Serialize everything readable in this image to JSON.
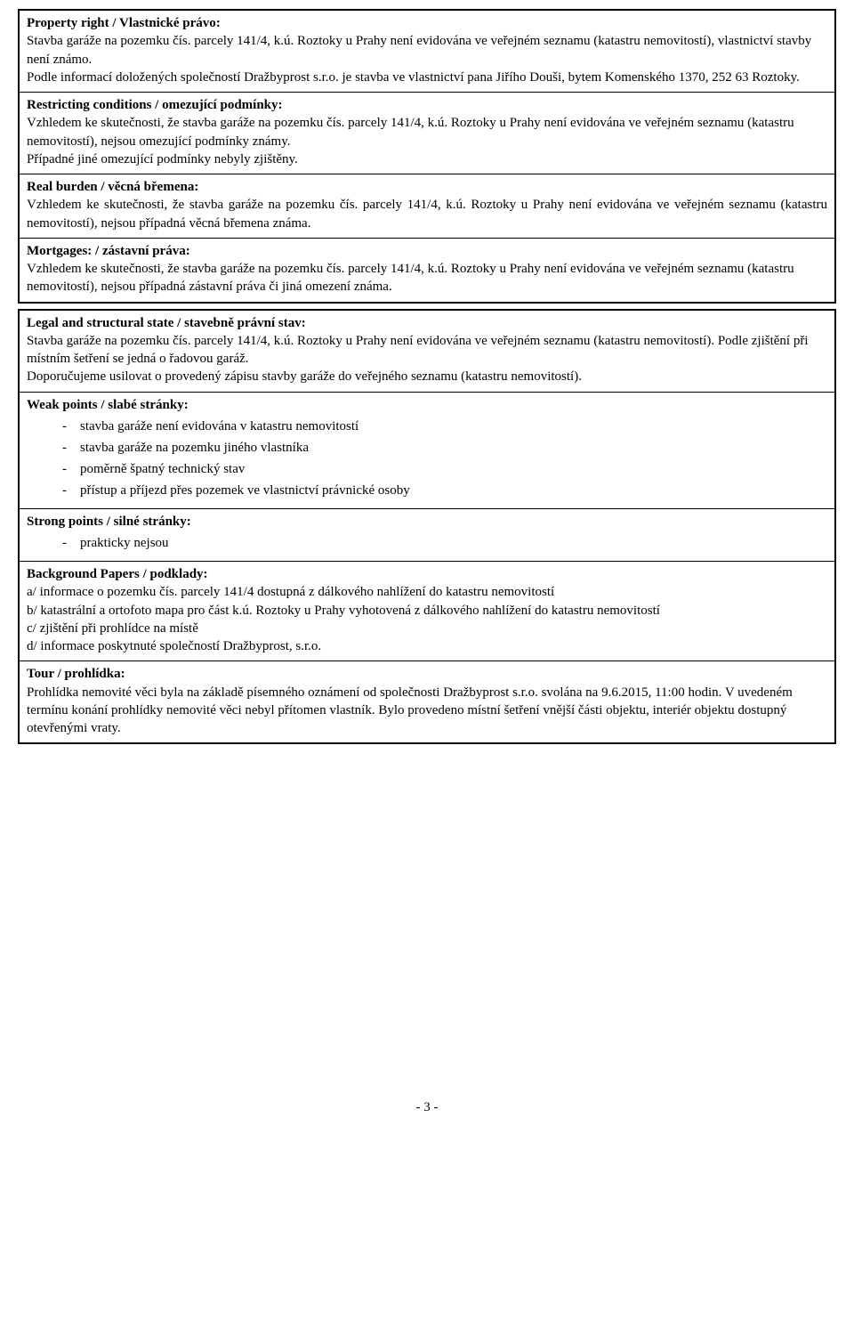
{
  "box1": {
    "property_right": {
      "title": "Property right / Vlastnické právo:",
      "p1": "Stavba garáže na pozemku čís. parcely 141/4, k.ú. Roztoky u Prahy není evidována ve veřejném seznamu (katastru nemovitostí), vlastnictví stavby není známo.",
      "p2": "Podle informací doložených společností Dražbyprost s.r.o. je stavba ve vlastnictví pana Jiřího Douši, bytem Komenského 1370, 252 63 Roztoky."
    },
    "restricting": {
      "title": "Restricting conditions / omezující podmínky:",
      "p1": "Vzhledem ke skutečnosti, že stavba garáže na pozemku čís. parcely 141/4, k.ú. Roztoky u Prahy není evidována ve veřejném seznamu (katastru nemovitostí), nejsou omezující podmínky známy.",
      "p2": "Případné jiné omezující podmínky nebyly zjištěny."
    },
    "burden": {
      "title": "Real burden / věcná břemena:",
      "p1": "Vzhledem ke skutečnosti, že stavba garáže na pozemku čís. parcely 141/4, k.ú. Roztoky u Prahy není evidována ve veřejném seznamu (katastru nemovitostí), nejsou případná věcná břemena známa."
    },
    "mortgages": {
      "title": "Mortgages: / zástavní práva:",
      "p1": "Vzhledem ke skutečnosti, že stavba garáže na pozemku čís. parcely 141/4, k.ú. Roztoky u Prahy není evidována ve veřejném seznamu (katastru nemovitostí), nejsou případná zástavní práva či jiná omezení známa."
    }
  },
  "box2": {
    "legal": {
      "title": "Legal and structural state / stavebně právní stav:",
      "p1": "Stavba garáže na pozemku čís. parcely 141/4, k.ú. Roztoky u Prahy není evidována ve veřejném seznamu (katastru nemovitostí). Podle zjištění při místním šetření se jedná o řadovou garáž.",
      "p2": "Doporučujeme usilovat o provedený zápisu stavby garáže do veřejného seznamu (katastru nemovitostí)."
    },
    "weak": {
      "title": "Weak points / slabé stránky:",
      "items": [
        "stavba garáže není evidována v katastru nemovitostí",
        "stavba garáže na pozemku jiného vlastníka",
        "poměrně špatný technický stav",
        "přístup a příjezd přes pozemek ve vlastnictví právnické osoby"
      ]
    },
    "strong": {
      "title": "Strong points / silné stránky:",
      "items": [
        "prakticky nejsou"
      ]
    },
    "background": {
      "title": "Background Papers / podklady:",
      "a": "a/ informace o pozemku čís. parcely 141/4 dostupná z dálkového nahlížení do katastru nemovitostí",
      "b": "b/ katastrální a ortofoto mapa pro část k.ú. Roztoky u Prahy vyhotovená z dálkového nahlížení do katastru nemovitostí",
      "c": "c/ zjištění při prohlídce na místě",
      "d": "d/ informace poskytnuté společností Dražbyprost, s.r.o."
    },
    "tour": {
      "title": "Tour / prohlídka:",
      "p1": "Prohlídka nemovité věci byla na základě písemného oznámení od společnosti Dražbyprost s.r.o. svolána na 9.6.2015, 11:00 hodin. V uvedeném termínu konání prohlídky nemovité věci nebyl přítomen vlastník. Bylo provedeno místní šetření vnější části objektu, interiér objektu dostupný otevřenými vraty."
    }
  },
  "page_number": "- 3 -"
}
